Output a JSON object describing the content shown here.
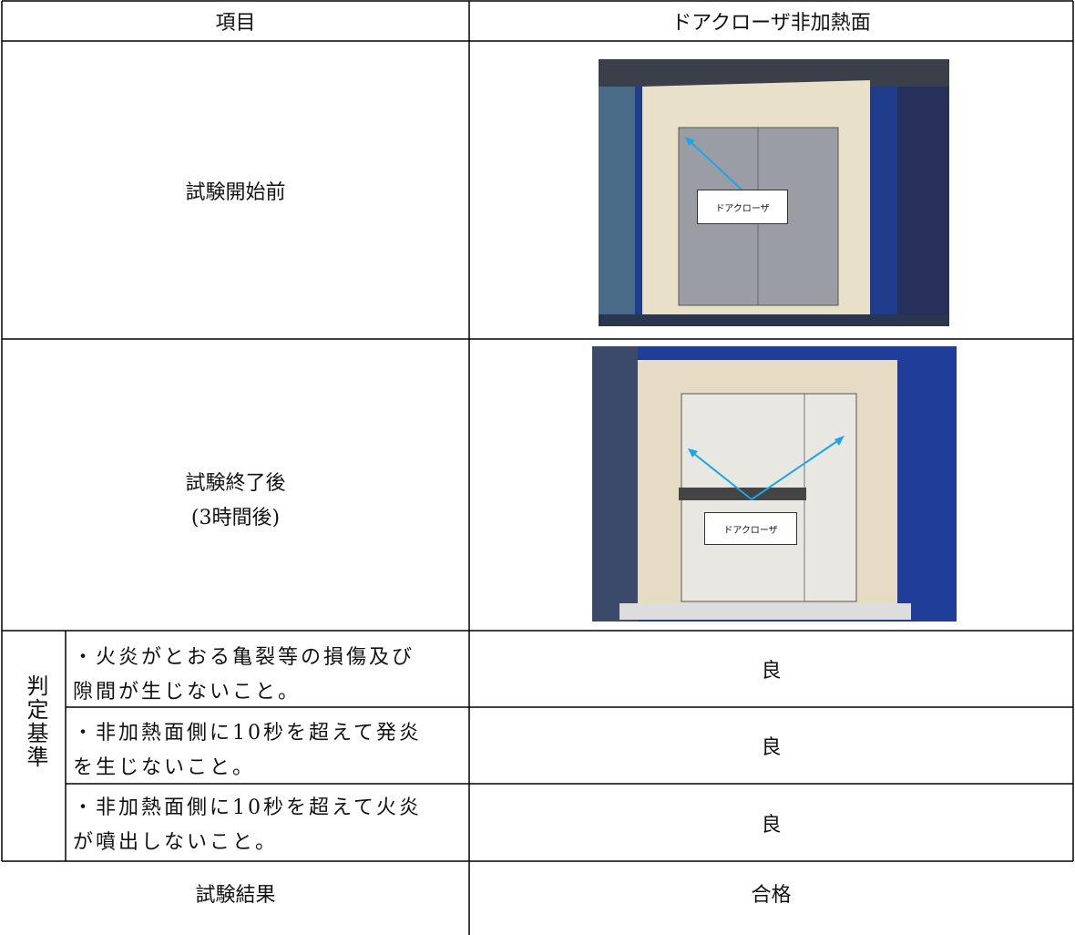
{
  "table": {
    "header": [
      "項目",
      "ドアクローザ非加熱面"
    ],
    "rows": [
      {
        "item": "試験開始前",
        "photo_label": "ドアクローザ"
      },
      {
        "item": "試験終了後",
        "item_note": "(3時間後)",
        "photo_label": "ドアクローザ"
      }
    ],
    "criteria": {
      "label": "判定基準",
      "items": [
        {
          "lines": [
            "・火炎がとおる亀裂等の損傷及び",
            "隙間が生じないこと。"
          ],
          "result": "良"
        },
        {
          "lines": [
            "・非加熱面側に10秒を超えて発炎",
            "を生じないこと。"
          ],
          "result": "良"
        },
        {
          "lines": [
            "・非加熱面側に10秒を超えて火炎",
            "が噴出しないこと。"
          ],
          "result": "良"
        }
      ]
    },
    "result": {
      "label": "試験結果",
      "value": "合格"
    }
  }
}
